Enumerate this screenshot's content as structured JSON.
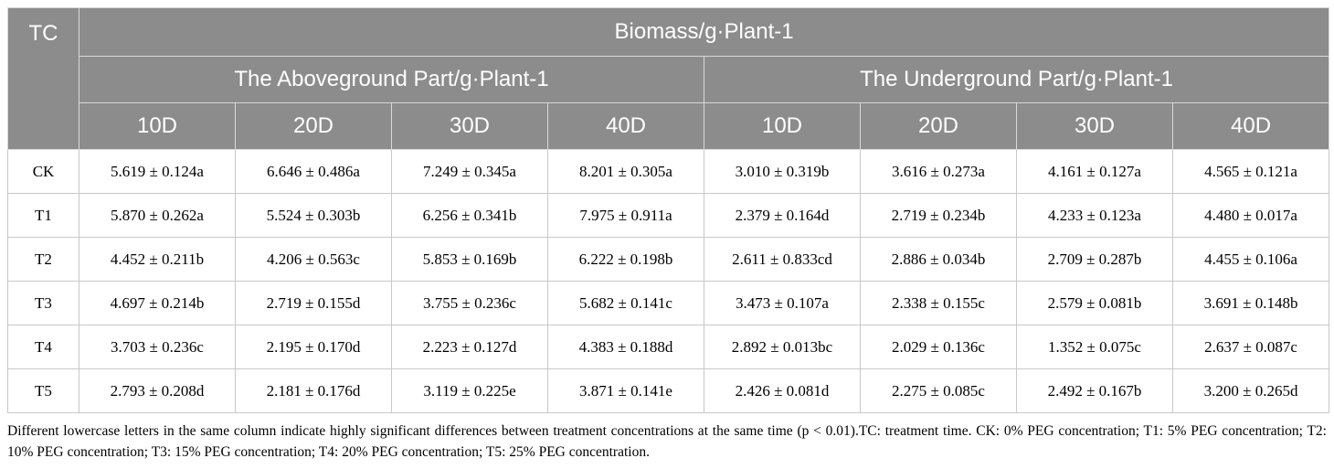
{
  "table": {
    "tc_header": "TC",
    "biomass_header": "Biomass/g·Plant-1",
    "aboveground_header": "The Aboveground Part/g·Plant-1",
    "underground_header": "The Underground Part/g·Plant-1",
    "day_headers": [
      "10D",
      "20D",
      "30D",
      "40D",
      "10D",
      "20D",
      "30D",
      "40D"
    ],
    "rows": [
      {
        "tc": "CK",
        "values": [
          "5.619 ± 0.124a",
          "6.646 ± 0.486a",
          "7.249 ± 0.345a",
          "8.201 ± 0.305a",
          "3.010 ± 0.319b",
          "3.616 ± 0.273a",
          "4.161 ± 0.127a",
          "4.565 ± 0.121a"
        ]
      },
      {
        "tc": "T1",
        "values": [
          "5.870 ± 0.262a",
          "5.524 ± 0.303b",
          "6.256 ± 0.341b",
          "7.975 ± 0.911a",
          "2.379 ± 0.164d",
          "2.719 ± 0.234b",
          "4.233 ± 0.123a",
          "4.480 ± 0.017a"
        ]
      },
      {
        "tc": "T2",
        "values": [
          "4.452 ± 0.211b",
          "4.206 ± 0.563c",
          "5.853 ± 0.169b",
          "6.222 ± 0.198b",
          "2.611 ± 0.833cd",
          "2.886 ± 0.034b",
          "2.709 ± 0.287b",
          "4.455 ± 0.106a"
        ]
      },
      {
        "tc": "T3",
        "values": [
          "4.697 ± 0.214b",
          "2.719 ± 0.155d",
          "3.755 ± 0.236c",
          "5.682 ± 0.141c",
          "3.473 ± 0.107a",
          "2.338 ± 0.155c",
          "2.579 ± 0.081b",
          "3.691 ± 0.148b"
        ]
      },
      {
        "tc": "T4",
        "values": [
          "3.703 ± 0.236c",
          "2.195 ± 0.170d",
          "2.223 ± 0.127d",
          "4.383 ± 0.188d",
          "2.892 ± 0.013bc",
          "2.029 ± 0.136c",
          "1.352 ± 0.075c",
          "2.637 ± 0.087c"
        ]
      },
      {
        "tc": "T5",
        "values": [
          "2.793 ± 0.208d",
          "2.181 ± 0.176d",
          "3.119 ± 0.225e",
          "3.871 ± 0.141e",
          "2.426 ± 0.081d",
          "2.275 ± 0.085c",
          "2.492 ± 0.167b",
          "3.200 ± 0.265d"
        ]
      }
    ]
  },
  "footnote": "Different lowercase letters in the same column indicate highly significant differences between treatment concentrations at the same time (p < 0.01).TC: treatment time. CK: 0% PEG concentration; T1: 5% PEG concentration; T2: 10% PEG concentration; T3: 15% PEG concentration; T4: 20% PEG concentration; T5: 25% PEG concentration.",
  "colors": {
    "header_bg": "#8c8c8c",
    "header_text": "#ffffff",
    "grid_line": "#c8c8c8"
  }
}
